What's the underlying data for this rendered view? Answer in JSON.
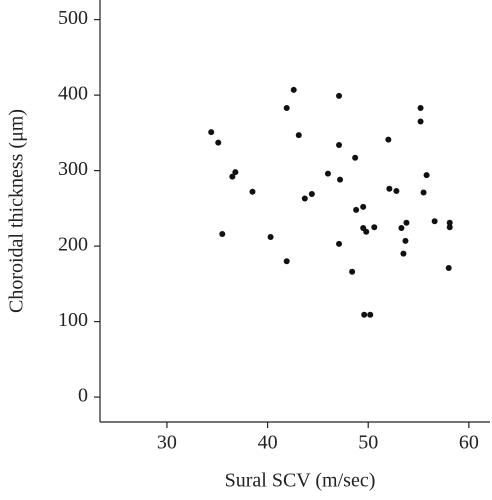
{
  "chart_data": {
    "type": "scatter",
    "x_label": "Sural SCV (m/sec)",
    "y_label": "Choroidal thickness (μm)",
    "xlim": [
      23.35,
      62.1
    ],
    "ylim": [
      -33,
      526
    ],
    "xticks": [
      30,
      40,
      50,
      60
    ],
    "yticks": [
      0,
      100,
      200,
      300,
      400,
      500
    ],
    "color": "#111111",
    "x": [
      34.4,
      35.1,
      35.5,
      36.5,
      36.8,
      38.5,
      40.3,
      41.9,
      41.9,
      42.6,
      43.1,
      43.7,
      44.4,
      46.0,
      47.1,
      47.1,
      47.2,
      47.1,
      48.4,
      48.7,
      48.8,
      49.5,
      49.5,
      49.8,
      49.6,
      50.2,
      50.6,
      52.0,
      52.1,
      52.8,
      53.3,
      53.5,
      53.7,
      53.8,
      55.2,
      55.2,
      55.5,
      55.8,
      56.6,
      58.1,
      58.1,
      58.0
    ],
    "values": [
      351,
      337,
      216,
      292,
      298,
      272,
      212,
      180,
      383,
      407,
      347,
      263,
      269,
      296,
      399,
      334,
      288,
      203,
      166,
      317,
      248,
      252,
      224,
      219,
      109,
      109,
      225,
      341,
      276,
      273,
      224,
      190,
      207,
      231,
      383,
      365,
      271,
      294,
      233,
      231,
      225,
      171
    ]
  }
}
